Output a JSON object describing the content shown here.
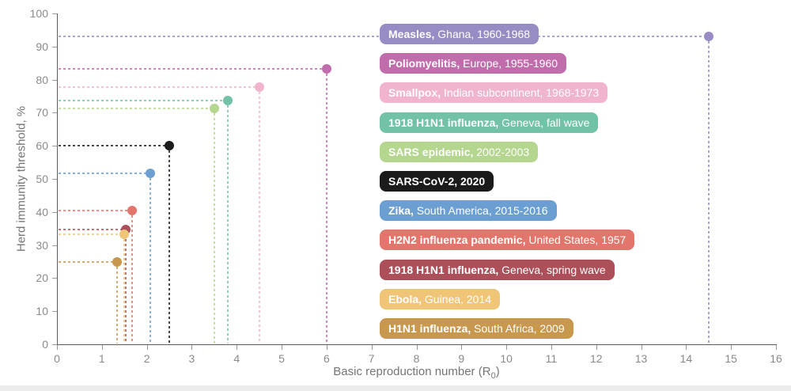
{
  "chart_data": {
    "type": "scatter",
    "title": "",
    "xlabel": "Basic reproduction number (R0)",
    "xlabel_pre": "Basic reproduction number (R",
    "xlabel_sub": "0",
    "xlabel_post": ")",
    "ylabel": "Herd immunity threshold, %",
    "xlim": [
      0,
      16
    ],
    "ylim": [
      0,
      100
    ],
    "x_ticks": [
      0,
      1,
      2,
      3,
      4,
      5,
      6,
      7,
      8,
      9,
      10,
      11,
      12,
      13,
      14,
      15,
      16
    ],
    "y_ticks": [
      0,
      10,
      20,
      30,
      40,
      50,
      60,
      70,
      80,
      90,
      100
    ],
    "grid": false,
    "marker_style": "circle-with-dashed-drop-lines",
    "legend_position": "inline-badges-right",
    "points": [
      {
        "id": "measles",
        "label_bold": "Measles,",
        "label_rest": "Ghana, 1960-1968",
        "r0": 14.5,
        "herd_immunity_threshold_pct": 93.1,
        "color": "#998cc4"
      },
      {
        "id": "poliomyelitis",
        "label_bold": "Poliomyelitis,",
        "label_rest": "Europe, 1955-1960",
        "r0": 6.0,
        "herd_immunity_threshold_pct": 83.3,
        "color": "#c16dab"
      },
      {
        "id": "smallpox",
        "label_bold": "Smallpox,",
        "label_rest": "Indian subcontinent, 1968-1973",
        "r0": 4.5,
        "herd_immunity_threshold_pct": 77.8,
        "color": "#f0b4ce"
      },
      {
        "id": "1918-h1n1-fall-wave",
        "label_bold": "1918 H1N1 influenza,",
        "label_rest": "Geneva, fall wave",
        "r0": 3.8,
        "herd_immunity_threshold_pct": 73.7,
        "color": "#72c2a7"
      },
      {
        "id": "sars-epidemic",
        "label_bold": "SARS epidemic,",
        "label_rest": "2002-2003",
        "r0": 3.5,
        "herd_immunity_threshold_pct": 71.4,
        "color": "#b5d68e"
      },
      {
        "id": "sars-cov-2",
        "label_bold": "SARS-CoV-2, 2020",
        "label_rest": "",
        "r0": 2.5,
        "herd_immunity_threshold_pct": 60.0,
        "color": "#1b1b1b"
      },
      {
        "id": "zika",
        "label_bold": "Zika,",
        "label_rest": "South America, 2015-2016",
        "r0": 2.07,
        "herd_immunity_threshold_pct": 51.7,
        "color": "#6b9fd2"
      },
      {
        "id": "h2n2-pandemic",
        "label_bold": "H2N2 influenza pandemic,",
        "label_rest": "United States, 1957",
        "r0": 1.68,
        "herd_immunity_threshold_pct": 40.5,
        "color": "#e2766c"
      },
      {
        "id": "1918-h1n1-spring-wave",
        "label_bold": "1918 H1N1 influenza,",
        "label_rest": "Geneva, spring wave",
        "r0": 1.53,
        "herd_immunity_threshold_pct": 34.6,
        "color": "#ad4f59"
      },
      {
        "id": "ebola",
        "label_bold": "Ebola,",
        "label_rest": "Guinea, 2014",
        "r0": 1.5,
        "herd_immunity_threshold_pct": 33.3,
        "color": "#f0c577"
      },
      {
        "id": "h1n1-2009",
        "label_bold": "H1N1 influenza,",
        "label_rest": "South Africa, 2009",
        "r0": 1.33,
        "herd_immunity_threshold_pct": 24.8,
        "color": "#c8984e"
      }
    ]
  }
}
